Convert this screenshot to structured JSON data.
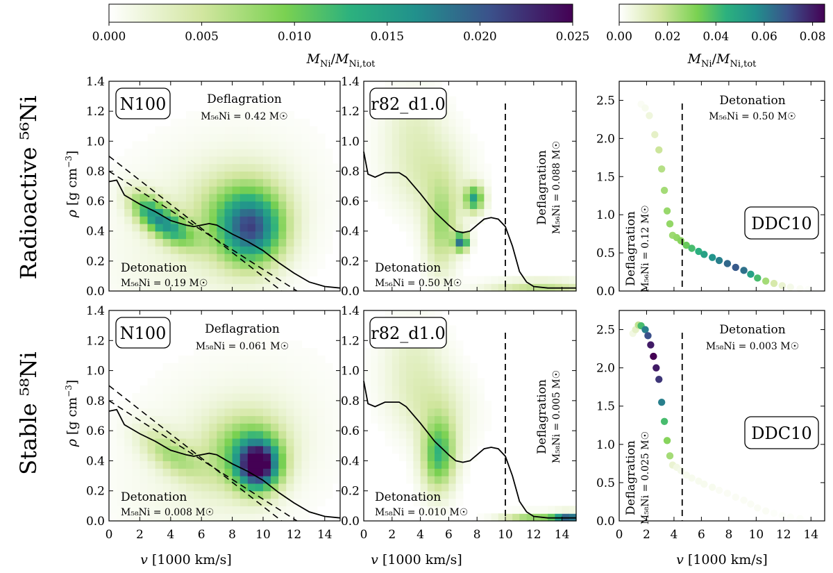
{
  "colorbars": [
    {
      "label": "M_Ni / M_Ni,tot",
      "ticks": [
        "0.000",
        "0.005",
        "0.010",
        "0.015",
        "0.020",
        "0.025"
      ],
      "range": [
        0,
        0.025
      ]
    },
    {
      "label": "M_Ni / M_Ni,tot",
      "ticks": [
        "0.00",
        "0.02",
        "0.04",
        "0.06",
        "0.08"
      ],
      "range": [
        0,
        0.085
      ]
    }
  ],
  "rows": [
    {
      "label": "Radioactive ⁵⁶Ni"
    },
    {
      "label": "Stable ⁵⁸Ni"
    }
  ],
  "axes": {
    "xlabel": "v [1000 km/s]",
    "ylabel": "ρ [g cm⁻³]",
    "xticks_left": [
      "0",
      "2",
      "4",
      "6",
      "8",
      "10",
      "12",
      "14"
    ],
    "xticks_right": [
      "0",
      "2",
      "4",
      "6",
      "8",
      "10",
      "12",
      "14"
    ],
    "yticks_hist": [
      "0.0",
      "0.2",
      "0.4",
      "0.6",
      "0.8",
      "1.0",
      "1.2",
      "1.4"
    ],
    "yticks_ddc": [
      "0.0",
      "0.5",
      "1.0",
      "1.5",
      "2.0",
      "2.5"
    ]
  },
  "panels": [
    {
      "model": "N100",
      "deflag_title": "Deflagration",
      "deflag_mass": "M₅₆Ni = 0.42 M☉",
      "det_title": "Detonation",
      "det_mass": "M₅₆Ni = 0.19 M☉"
    },
    {
      "model": "r82_d1.0",
      "deflag_title": "Deflagration",
      "deflag_mass": "M₅₆Ni = 0.088 M☉",
      "det_title": "Detonation",
      "det_mass": "M₅₆Ni = 0.50 M☉"
    },
    {
      "model": "DDC10",
      "deflag_title": "Deflagration",
      "deflag_mass": "M₅₆Ni = 0.12 M☉",
      "det_title": "Detonation",
      "det_mass": "M₅₆Ni = 0.50 M☉"
    },
    {
      "model": "N100",
      "deflag_title": "Deflagration",
      "deflag_mass": "M₅₈Ni = 0.061 M☉",
      "det_title": "Detonation",
      "det_mass": "M₅₈Ni = 0.008 M☉"
    },
    {
      "model": "r82_d1.0",
      "deflag_title": "Deflagration",
      "deflag_mass": "M₅₈Ni = 0.005 M☉",
      "det_title": "Detonation",
      "det_mass": "M₅₈Ni = 0.010 M☉"
    },
    {
      "model": "DDC10",
      "deflag_title": "Deflagration",
      "deflag_mass": "M₅₈Ni = 0.025 M☉",
      "det_title": "Detonation",
      "det_mass": "M₅₈Ni = 0.003 M☉"
    }
  ],
  "chart_data": [
    {
      "type": "heatmap",
      "title": "N100 — Radioactive 56Ni",
      "xlim": [
        0,
        15
      ],
      "ylim": [
        0,
        1.4
      ],
      "bin_x": 0.5,
      "bin_y": 0.05,
      "mean_density_curve": {
        "x": [
          0,
          0.5,
          1,
          2,
          3,
          4,
          5,
          5.5,
          6,
          6.5,
          7,
          8,
          9,
          10,
          11,
          12,
          13,
          14,
          15
        ],
        "y": [
          0.73,
          0.74,
          0.64,
          0.58,
          0.53,
          0.47,
          0.44,
          0.43,
          0.44,
          0.45,
          0.44,
          0.38,
          0.33,
          0.27,
          0.19,
          0.12,
          0.06,
          0.03,
          0.02
        ]
      },
      "dashed_lines": [
        {
          "x": [
            0,
            11.2
          ],
          "y": [
            0.9,
            0
          ]
        },
        {
          "x": [
            0,
            12.2
          ],
          "y": [
            0.8,
            0
          ]
        }
      ],
      "blobs": [
        {
          "cx": 9.3,
          "cy": 0.4,
          "sx": 1.3,
          "sy": 0.18,
          "amp": 0.016,
          "rot": -0.35
        },
        {
          "cx": 8.3,
          "cy": 0.55,
          "sx": 1.4,
          "sy": 0.25,
          "amp": 0.006,
          "rot": -0.35
        },
        {
          "cx": 3.8,
          "cy": 0.44,
          "sx": 1.3,
          "sy": 0.07,
          "amp": 0.012,
          "rot": -0.12
        },
        {
          "cx": 2.5,
          "cy": 0.55,
          "sx": 1.0,
          "sy": 0.07,
          "amp": 0.007,
          "rot": -0.15
        },
        {
          "cx": 6.5,
          "cy": 0.45,
          "sx": 3.0,
          "sy": 0.55,
          "amp": 0.0022,
          "rot": -0.3
        }
      ]
    },
    {
      "type": "heatmap",
      "title": "r82_d1.0 — Radioactive 56Ni",
      "xlim": [
        0,
        15
      ],
      "ylim": [
        0,
        1.4
      ],
      "bin_x": 0.5,
      "bin_y": 0.05,
      "mean_density_curve": {
        "x": [
          0,
          0.3,
          0.8,
          1.5,
          2,
          2.5,
          3,
          4,
          5,
          6,
          6.5,
          7,
          7.5,
          8,
          8.5,
          9,
          9.5,
          10,
          10.5,
          11,
          11.5,
          12,
          13,
          14,
          15
        ],
        "y": [
          0.93,
          0.78,
          0.76,
          0.79,
          0.79,
          0.79,
          0.76,
          0.65,
          0.53,
          0.44,
          0.4,
          0.39,
          0.4,
          0.44,
          0.48,
          0.49,
          0.48,
          0.43,
          0.3,
          0.13,
          0.06,
          0.03,
          0.02,
          0.02,
          0.02
        ]
      },
      "vertical_dashed_x": 10,
      "blobs": [
        {
          "cx": 7.8,
          "cy": 0.62,
          "sx": 0.45,
          "sy": 0.06,
          "amp": 0.014,
          "rot": 0
        },
        {
          "cx": 6.9,
          "cy": 0.33,
          "sx": 0.35,
          "sy": 0.04,
          "amp": 0.018,
          "rot": 0
        },
        {
          "cx": 5.5,
          "cy": 0.42,
          "sx": 1.6,
          "sy": 0.1,
          "amp": 0.007,
          "rot": -0.4
        },
        {
          "cx": 4.5,
          "cy": 0.8,
          "sx": 1.6,
          "sy": 0.25,
          "amp": 0.004,
          "rot": -0.5
        },
        {
          "cx": 3.5,
          "cy": 1.15,
          "sx": 1.2,
          "sy": 0.18,
          "amp": 0.002,
          "rot": -0.4
        },
        {
          "cx": 12.5,
          "cy": 0.03,
          "sx": 2.5,
          "sy": 0.03,
          "amp": 0.006,
          "rot": 0
        }
      ]
    },
    {
      "type": "scatter",
      "title": "DDC10 — Radioactive 56Ni",
      "xlim": [
        0,
        15
      ],
      "ylim": [
        0,
        2.75
      ],
      "vertical_dashed_x": 4.6,
      "points": [
        [
          1.6,
          2.45,
          0.002
        ],
        [
          1.9,
          2.4,
          0.003
        ],
        [
          2.2,
          2.3,
          0.006
        ],
        [
          2.6,
          2.05,
          0.01
        ],
        [
          2.9,
          1.85,
          0.018
        ],
        [
          3.1,
          1.6,
          0.022
        ],
        [
          3.3,
          1.32,
          0.025
        ],
        [
          3.5,
          1.05,
          0.027
        ],
        [
          3.7,
          0.88,
          0.028
        ],
        [
          3.9,
          0.73,
          0.026
        ],
        [
          4.2,
          0.7,
          0.028
        ],
        [
          4.5,
          0.66,
          0.03
        ],
        [
          4.9,
          0.6,
          0.035
        ],
        [
          5.3,
          0.56,
          0.04
        ],
        [
          5.8,
          0.52,
          0.045
        ],
        [
          6.2,
          0.48,
          0.05
        ],
        [
          6.8,
          0.44,
          0.055
        ],
        [
          7.3,
          0.4,
          0.06
        ],
        [
          7.9,
          0.36,
          0.065
        ],
        [
          8.5,
          0.31,
          0.068
        ],
        [
          9.1,
          0.27,
          0.063
        ],
        [
          9.6,
          0.22,
          0.05
        ],
        [
          10.1,
          0.17,
          0.04
        ],
        [
          10.7,
          0.13,
          0.025
        ],
        [
          11.3,
          0.1,
          0.015
        ],
        [
          11.9,
          0.07,
          0.008
        ],
        [
          12.5,
          0.05,
          0.004
        ],
        [
          13.2,
          0.03,
          0.002
        ],
        [
          13.8,
          0.02,
          0.001
        ]
      ]
    },
    {
      "type": "heatmap",
      "title": "N100 — Stable 58Ni",
      "xlim": [
        0,
        15
      ],
      "ylim": [
        0,
        1.4
      ],
      "bin_x": 0.5,
      "bin_y": 0.05,
      "mean_density_curve": {
        "x": [
          0,
          0.5,
          1,
          2,
          3,
          4,
          5,
          5.5,
          6,
          6.5,
          7,
          8,
          9,
          10,
          11,
          12,
          13,
          14,
          15
        ],
        "y": [
          0.73,
          0.74,
          0.64,
          0.58,
          0.53,
          0.47,
          0.44,
          0.43,
          0.44,
          0.45,
          0.44,
          0.38,
          0.33,
          0.27,
          0.19,
          0.12,
          0.06,
          0.03,
          0.02
        ]
      },
      "dashed_lines": [
        {
          "x": [
            0,
            11.2
          ],
          "y": [
            0.9,
            0
          ]
        },
        {
          "x": [
            0,
            12.2
          ],
          "y": [
            0.8,
            0
          ]
        }
      ],
      "blobs": [
        {
          "cx": 9.7,
          "cy": 0.37,
          "sx": 0.9,
          "sy": 0.12,
          "amp": 0.023,
          "rot": -0.35
        },
        {
          "cx": 8.8,
          "cy": 0.48,
          "sx": 1.3,
          "sy": 0.22,
          "amp": 0.008,
          "rot": -0.35
        },
        {
          "cx": 4.0,
          "cy": 0.45,
          "sx": 1.5,
          "sy": 0.08,
          "amp": 0.006,
          "rot": -0.12
        },
        {
          "cx": 7.5,
          "cy": 0.45,
          "sx": 3.0,
          "sy": 0.55,
          "amp": 0.002,
          "rot": -0.3
        }
      ]
    },
    {
      "type": "heatmap",
      "title": "r82_d1.0 — Stable 58Ni",
      "xlim": [
        0,
        15
      ],
      "ylim": [
        0,
        1.4
      ],
      "bin_x": 0.5,
      "bin_y": 0.05,
      "mean_density_curve": {
        "x": [
          0,
          0.3,
          0.8,
          1.5,
          2,
          2.5,
          3,
          4,
          5,
          6,
          6.5,
          7,
          7.5,
          8,
          8.5,
          9,
          9.5,
          10,
          10.5,
          11,
          11.5,
          12,
          13,
          14,
          15
        ],
        "y": [
          0.93,
          0.78,
          0.76,
          0.79,
          0.79,
          0.79,
          0.76,
          0.65,
          0.53,
          0.44,
          0.4,
          0.39,
          0.4,
          0.44,
          0.48,
          0.49,
          0.48,
          0.43,
          0.3,
          0.13,
          0.06,
          0.03,
          0.02,
          0.02,
          0.02
        ]
      },
      "vertical_dashed_x": 10,
      "blobs": [
        {
          "cx": 5.3,
          "cy": 0.44,
          "sx": 1.3,
          "sy": 0.1,
          "amp": 0.012,
          "rot": -0.4
        },
        {
          "cx": 4.5,
          "cy": 0.8,
          "sx": 1.5,
          "sy": 0.25,
          "amp": 0.004,
          "rot": -0.5
        },
        {
          "cx": 3.5,
          "cy": 1.15,
          "sx": 1.2,
          "sy": 0.18,
          "amp": 0.002,
          "rot": -0.4
        },
        {
          "cx": 14.5,
          "cy": 0.03,
          "sx": 0.8,
          "sy": 0.02,
          "amp": 0.018,
          "rot": 0
        },
        {
          "cx": 12.0,
          "cy": 0.03,
          "sx": 1.5,
          "sy": 0.02,
          "amp": 0.008,
          "rot": 0
        }
      ]
    },
    {
      "type": "scatter",
      "title": "DDC10 — Stable 58Ni",
      "xlim": [
        0,
        15
      ],
      "ylim": [
        0,
        2.75
      ],
      "vertical_dashed_x": 4.6,
      "points": [
        [
          1.0,
          2.45,
          0.005
        ],
        [
          1.2,
          2.5,
          0.01
        ],
        [
          1.4,
          2.56,
          0.02
        ],
        [
          1.6,
          2.55,
          0.04
        ],
        [
          1.9,
          2.5,
          0.06
        ],
        [
          2.1,
          2.42,
          0.07
        ],
        [
          2.3,
          2.3,
          0.08
        ],
        [
          2.5,
          2.15,
          0.085
        ],
        [
          2.7,
          2.0,
          0.08
        ],
        [
          2.9,
          1.85,
          0.075
        ],
        [
          3.1,
          1.55,
          0.06
        ],
        [
          3.3,
          1.3,
          0.04
        ],
        [
          3.5,
          1.05,
          0.03
        ],
        [
          3.7,
          0.85,
          0.025
        ],
        [
          3.9,
          0.73,
          0.008
        ],
        [
          4.2,
          0.7,
          0.005
        ],
        [
          4.5,
          0.66,
          0.004
        ],
        [
          4.9,
          0.6,
          0.003
        ],
        [
          5.3,
          0.56,
          0.003
        ],
        [
          5.8,
          0.52,
          0.003
        ],
        [
          6.2,
          0.48,
          0.003
        ],
        [
          6.8,
          0.44,
          0.003
        ],
        [
          7.3,
          0.4,
          0.002
        ],
        [
          7.9,
          0.36,
          0.002
        ],
        [
          8.5,
          0.31,
          0.002
        ],
        [
          9.1,
          0.27,
          0.002
        ],
        [
          9.6,
          0.22,
          0.002
        ],
        [
          10.1,
          0.17,
          0.002
        ],
        [
          10.7,
          0.13,
          0.002
        ],
        [
          11.3,
          0.1,
          0.001
        ],
        [
          11.9,
          0.07,
          0.001
        ],
        [
          12.5,
          0.05,
          0.001
        ],
        [
          13.2,
          0.03,
          0.001
        ]
      ]
    }
  ]
}
